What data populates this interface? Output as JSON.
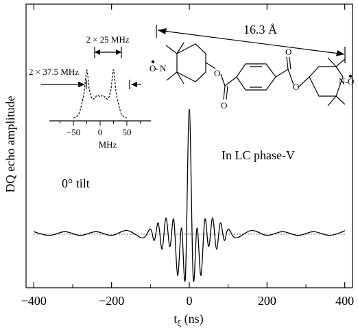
{
  "chart_data": {
    "type": "line",
    "title": "",
    "xlabel": "t_ξ (ns)",
    "xlabel_main": "t",
    "xlabel_sub": "ξ",
    "xlabel_unit": " (ns)",
    "ylabel": "DQ echo amplitude",
    "xlim": [
      -420,
      420
    ],
    "x_ticks": [
      -400,
      -200,
      0,
      200,
      400
    ],
    "x_tick_labels": [
      "−400",
      "−200",
      "0",
      "200",
      "400"
    ],
    "y_ticks_shown": false,
    "grid": false,
    "series": [
      {
        "x": [
          -400,
          -360,
          -320,
          -280,
          -240,
          -200,
          -160,
          -120,
          -100,
          -90,
          -80,
          -70,
          -60,
          -50,
          -40,
          -30,
          -20,
          -10,
          0,
          10,
          20,
          30,
          40,
          50,
          60,
          70,
          80,
          90,
          100,
          120,
          160,
          200,
          240,
          280,
          320,
          360,
          395,
          400
        ],
        "y": [
          0.02,
          -0.01,
          0.02,
          -0.01,
          0.02,
          -0.01,
          0.03,
          -0.03,
          0.04,
          -0.05,
          0.09,
          -0.12,
          0.13,
          -0.1,
          0.12,
          -0.33,
          0.05,
          -0.35,
          1.0,
          -0.35,
          0.05,
          -0.33,
          0.12,
          -0.1,
          0.13,
          -0.12,
          0.09,
          -0.05,
          0.04,
          -0.03,
          0.03,
          -0.01,
          0.02,
          -0.01,
          0.02,
          -0.01,
          0.02,
          0.03
        ]
      }
    ],
    "baseline_style": "dotted",
    "annotations": {
      "tilt": "0° tilt",
      "phase": "In LC phase-V",
      "distance": "16.3 Å"
    },
    "inset": {
      "type": "line",
      "line_style": "dashed",
      "xlabel": "MHz",
      "x_ticks": [
        -50,
        0,
        50
      ],
      "x_tick_labels": [
        "−50",
        "0",
        "50"
      ],
      "xlim": [
        -95,
        95
      ],
      "x": [
        -50,
        -45,
        -40,
        -37.5,
        -35,
        -30,
        -27,
        -25,
        -23,
        -20,
        -15,
        -10,
        -5,
        0,
        5,
        10,
        15,
        20,
        23,
        25,
        27,
        30,
        35,
        37.5,
        40,
        45,
        50
      ],
      "y": [
        0.0,
        0.02,
        0.08,
        0.15,
        0.25,
        0.5,
        0.8,
        0.95,
        0.82,
        0.55,
        0.38,
        0.4,
        0.45,
        0.42,
        0.45,
        0.4,
        0.38,
        0.55,
        0.82,
        0.95,
        0.8,
        0.5,
        0.25,
        0.15,
        0.08,
        0.02,
        0.0
      ],
      "label_peak_splitting": "2 × 25 MHz",
      "label_outer_splitting": "2 × 37.5 MHz"
    },
    "molecule_atoms": {
      "left_o": "O",
      "left_n": "N",
      "right_n": "N",
      "right_o": "O",
      "ester_o": "O"
    }
  }
}
